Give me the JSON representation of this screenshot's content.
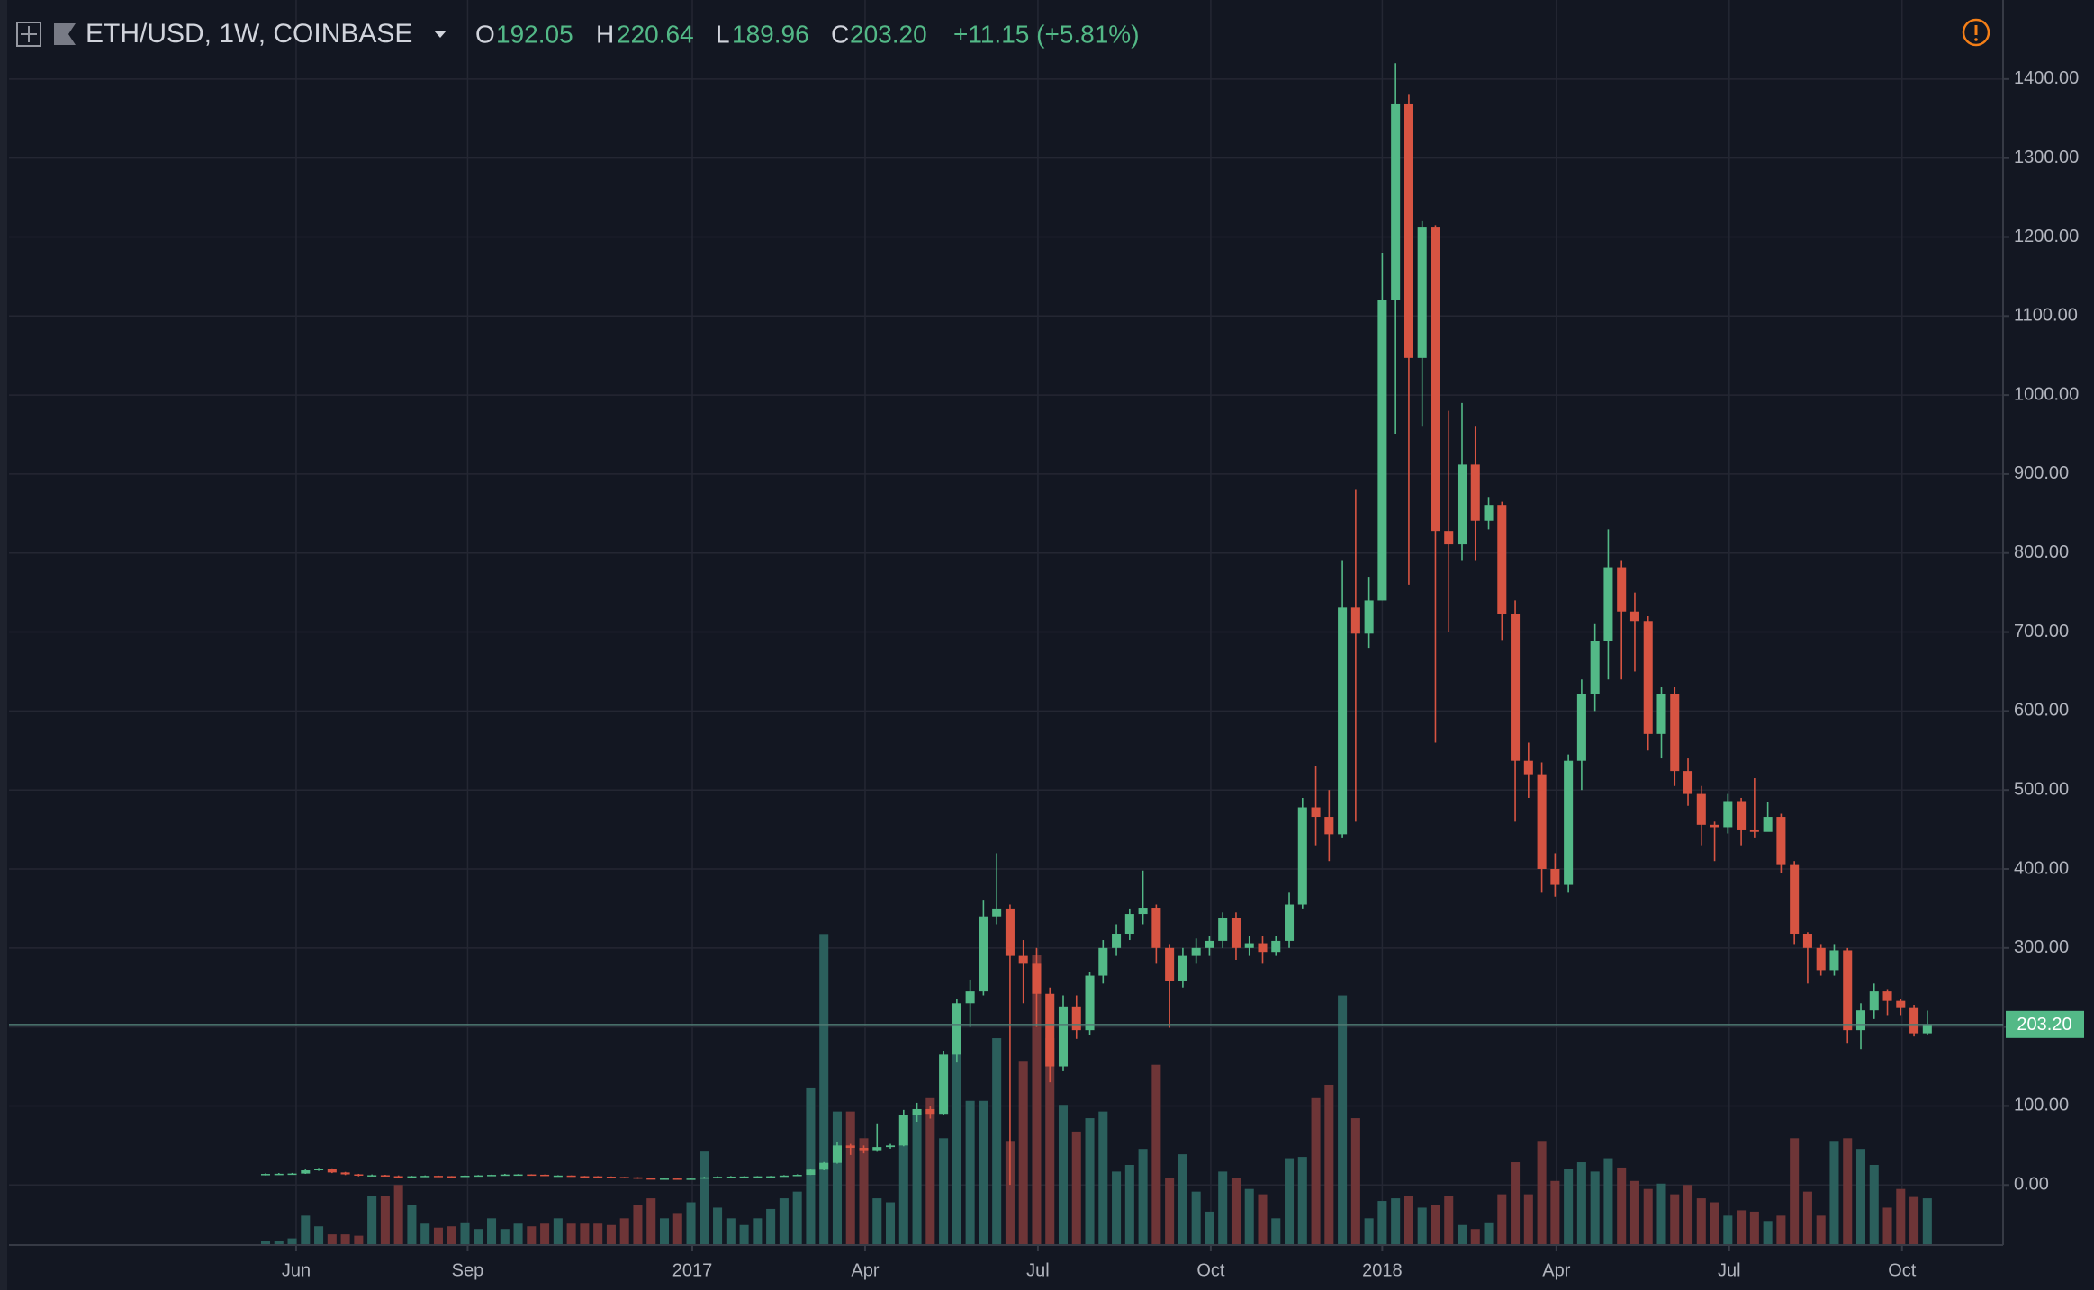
{
  "header": {
    "symbol": "ETH/USD, 1W, COINBASE",
    "o_label": "O",
    "o": "192.05",
    "h_label": "H",
    "h": "220.64",
    "l_label": "L",
    "l": "189.96",
    "c_label": "C",
    "c": "203.20",
    "change": "+11.15 (+5.81%)"
  },
  "chart_data": {
    "type": "candlestick",
    "up_color": "#53b987",
    "down_color": "#d75442",
    "volume_up_color": "#2b5f5c",
    "volume_down_color": "#6e3537",
    "grid": true,
    "ylim": [
      -76,
      1475
    ],
    "yticks": [
      {
        "value": 0,
        "label": "0.00"
      },
      {
        "value": 100,
        "label": "100.00"
      },
      {
        "value": 200,
        "label": "200.00"
      },
      {
        "value": 300,
        "label": "300.00"
      },
      {
        "value": 400,
        "label": "400.00"
      },
      {
        "value": 500,
        "label": "500.00"
      },
      {
        "value": 600,
        "label": "600.00"
      },
      {
        "value": 700,
        "label": "700.00"
      },
      {
        "value": 800,
        "label": "800.00"
      },
      {
        "value": 900,
        "label": "900.00"
      },
      {
        "value": 1000,
        "label": "1000.00"
      },
      {
        "value": 1100,
        "label": "1100.00"
      },
      {
        "value": 1200,
        "label": "1200.00"
      },
      {
        "value": 1300,
        "label": "1300.00"
      },
      {
        "value": 1400,
        "label": "1400.00"
      }
    ],
    "xlim": [
      -19.3,
      130.7
    ],
    "xticks": [
      {
        "value": 2.3,
        "label": "Jun"
      },
      {
        "value": 15.2,
        "label": "Sep"
      },
      {
        "value": 32.1,
        "label": "2017"
      },
      {
        "value": 45.1,
        "label": "Apr"
      },
      {
        "value": 58.1,
        "label": "Jul"
      },
      {
        "value": 71.1,
        "label": "Oct"
      },
      {
        "value": 84,
        "label": "2018"
      },
      {
        "value": 97.1,
        "label": "Apr"
      },
      {
        "value": 110.1,
        "label": "Jul"
      },
      {
        "value": 123.1,
        "label": "Oct"
      }
    ],
    "last_price": {
      "value": 203.2,
      "label": "203.20"
    },
    "volume_lim": [
      0,
      918
    ],
    "open": [
      12.5,
      13.9,
      14.1,
      14.4,
      18.5,
      20.6,
      15.8,
      13.4,
      11.8,
      12.3,
      11.1,
      10.9,
      11.0,
      11.5,
      11.1,
      10.2,
      11.7,
      12.1,
      12.7,
      13.2,
      13.3,
      12.9,
      11.8,
      11.9,
      11.1,
      10.9,
      10.5,
      10.0,
      9.6,
      8.4,
      8.1,
      8.2,
      7.9,
      8.1,
      9.6,
      10.3,
      10.6,
      10.7,
      10.9,
      11.0,
      11.9,
      12.8,
      19.3,
      28.0,
      50.0,
      47.0,
      44.0,
      48.0,
      50.0,
      88.0,
      96.0,
      90,
      165,
      230,
      245,
      340,
      350,
      290,
      280,
      242,
      150,
      226,
      196,
      265,
      300,
      318,
      343,
      351,
      300,
      258,
      290,
      300,
      309,
      338,
      300,
      306,
      295,
      309,
      355,
      478,
      466,
      444,
      731,
      698,
      740,
      1120,
      1368,
      1047,
      1213,
      828,
      811,
      912,
      841,
      861,
      723,
      537,
      520,
      400,
      380,
      537,
      622,
      689,
      782,
      726,
      714,
      571,
      622,
      524,
      495,
      456,
      453,
      486,
      449,
      447,
      466,
      405,
      318,
      300,
      272,
      297,
      196,
      221,
      245,
      233,
      225,
      192.05
    ],
    "high": [
      14.6,
      15.0,
      15.2,
      19.5,
      21.5,
      21.0,
      16.5,
      14.0,
      13.2,
      12.8,
      12.0,
      11.5,
      12.0,
      11.8,
      11.3,
      12.1,
      12.5,
      13.0,
      14.0,
      13.7,
      13.5,
      13.1,
      12.2,
      12.0,
      11.4,
      11.2,
      10.8,
      10.2,
      9.8,
      8.6,
      8.5,
      8.3,
      8.3,
      10.3,
      11.0,
      11.2,
      11.0,
      11.2,
      11.4,
      12.4,
      13.4,
      20.0,
      29.0,
      55.0,
      52.0,
      50.0,
      78.0,
      52.0,
      95.0,
      104,
      100,
      170,
      235,
      260,
      360,
      420,
      355,
      310,
      300,
      250,
      240,
      240,
      270,
      310,
      330,
      350,
      398,
      355,
      305,
      300,
      312,
      315,
      345,
      345,
      315,
      315,
      315,
      370,
      490,
      530,
      500,
      790,
      880,
      770,
      1180,
      1420,
      1380,
      1220,
      1215,
      980,
      990,
      960,
      870,
      865,
      740,
      560,
      535,
      420,
      545,
      640,
      710,
      830,
      790,
      750,
      720,
      630,
      630,
      540,
      505,
      460,
      495,
      490,
      515,
      485,
      470,
      410,
      320,
      305,
      305,
      300,
      230,
      255,
      248,
      235,
      228,
      220.64
    ],
    "low": [
      12.0,
      13.3,
      13.6,
      14.0,
      17.9,
      15.0,
      12.5,
      10.9,
      11.2,
      10.6,
      10.3,
      10.5,
      10.8,
      10.8,
      10.0,
      10.1,
      11.4,
      11.9,
      12.5,
      12.8,
      12.5,
      11.5,
      11.6,
      10.8,
      10.6,
      10.3,
      9.7,
      9.3,
      7.8,
      7.6,
      7.8,
      7.6,
      7.8,
      8.0,
      9.5,
      10.1,
      10.3,
      10.5,
      10.7,
      10.9,
      11.7,
      12.6,
      18.5,
      27.0,
      38.0,
      40.0,
      42.0,
      46.0,
      49.0,
      80,
      84,
      88,
      155,
      200,
      240,
      330,
      0.1,
      230,
      200,
      130,
      145,
      185,
      190,
      255,
      290,
      310,
      330,
      280,
      199,
      250,
      280,
      290,
      300,
      285,
      290,
      280,
      290,
      300,
      350,
      430,
      410,
      440,
      460,
      680,
      740,
      950,
      760,
      960,
      560,
      700,
      790,
      790,
      830,
      690,
      460,
      490,
      370,
      365,
      370,
      500,
      600,
      640,
      640,
      650,
      550,
      540,
      505,
      480,
      430,
      410,
      445,
      430,
      440,
      455,
      395,
      305,
      255,
      265,
      265,
      180,
      172,
      210,
      215,
      215,
      188,
      189.96
    ],
    "close": [
      13.9,
      14.1,
      14.4,
      18.5,
      20.6,
      15.8,
      13.4,
      11.8,
      12.3,
      11.1,
      10.9,
      11.0,
      11.5,
      11.1,
      10.2,
      11.7,
      12.1,
      12.7,
      13.2,
      13.3,
      12.9,
      11.8,
      11.9,
      11.1,
      10.9,
      10.5,
      10.0,
      9.6,
      8.4,
      8.1,
      8.2,
      7.9,
      8.1,
      9.6,
      10.3,
      10.6,
      10.7,
      10.9,
      11.0,
      11.9,
      12.8,
      19.3,
      28.0,
      50.0,
      47.0,
      44.0,
      48.0,
      50.0,
      88.0,
      96.0,
      90.0,
      165,
      230,
      245,
      340,
      350,
      290,
      280,
      242,
      150,
      226,
      196,
      265,
      300,
      318,
      343,
      351,
      300,
      258,
      290,
      300,
      309,
      338,
      300,
      306,
      295,
      309,
      355,
      478,
      466,
      444,
      731,
      698,
      740,
      1120,
      1368,
      1047,
      1213,
      828,
      811,
      912,
      841,
      861,
      723,
      537,
      520,
      400,
      380,
      537,
      622,
      689,
      782,
      726,
      714,
      571,
      622,
      524,
      495,
      456,
      453,
      486,
      449,
      447,
      466,
      405,
      318,
      300,
      272,
      297,
      196,
      221,
      245,
      233,
      225,
      192.05,
      203.2
    ],
    "volume": [
      3,
      3,
      5,
      22,
      14,
      8,
      8,
      7,
      37,
      37,
      45,
      30,
      16,
      13,
      14,
      17,
      12,
      20,
      12,
      16,
      14,
      16,
      20,
      16,
      16,
      16,
      15,
      20,
      30,
      35,
      20,
      24,
      32,
      70,
      28,
      20,
      15,
      20,
      27,
      35,
      40,
      118,
      233,
      100,
      100,
      80,
      35,
      32,
      75,
      100,
      110,
      80,
      180,
      108,
      108,
      155,
      78,
      138,
      217,
      155,
      105,
      85,
      95,
      100,
      55,
      60,
      72,
      135,
      50,
      68,
      40,
      25,
      55,
      50,
      42,
      38,
      20,
      65,
      66,
      110,
      120,
      187,
      95,
      20,
      33,
      35,
      37,
      28,
      30,
      37,
      15,
      12,
      17,
      38,
      62,
      38,
      78,
      48,
      57,
      62,
      55,
      65,
      58,
      48,
      42,
      46,
      38,
      45,
      35,
      32,
      22,
      26,
      25,
      18,
      22,
      80,
      40,
      22,
      78,
      80,
      72,
      60,
      28,
      42,
      36,
      35
    ]
  }
}
